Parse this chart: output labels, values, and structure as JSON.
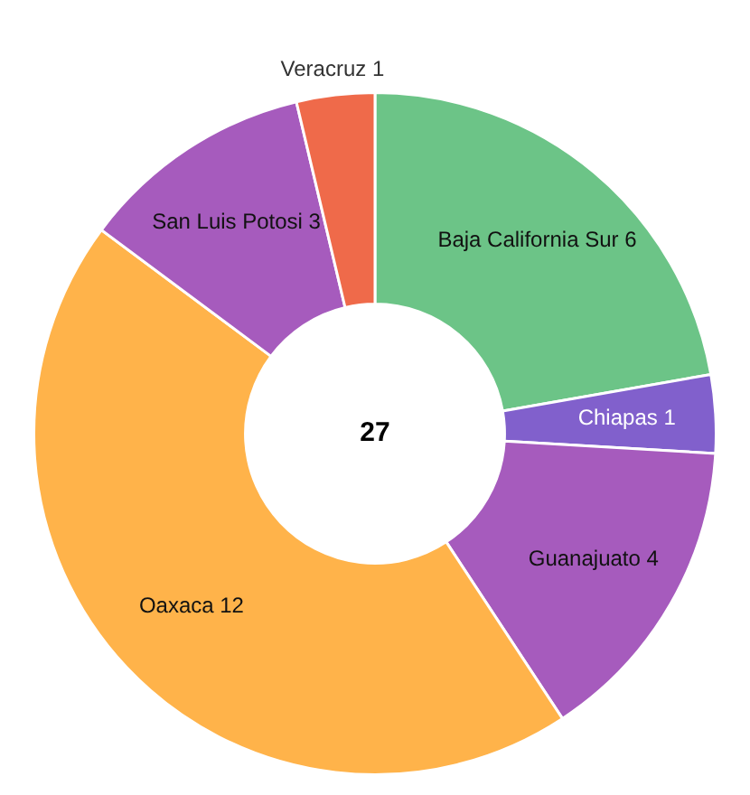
{
  "chart_data": {
    "type": "donut",
    "categories": [
      "Baja California Sur",
      "Chiapas",
      "Guanajuato",
      "Oaxaca",
      "San Luis Potosi",
      "Veracruz"
    ],
    "values": [
      6,
      1,
      4,
      12,
      3,
      1
    ],
    "colors": [
      "#6cc487",
      "#8160cc",
      "#a65bbd",
      "#ffb34a",
      "#a65bbd",
      "#ef6a4a"
    ],
    "data_labels": true,
    "legend": false,
    "annotations": [
      "27"
    ]
  }
}
